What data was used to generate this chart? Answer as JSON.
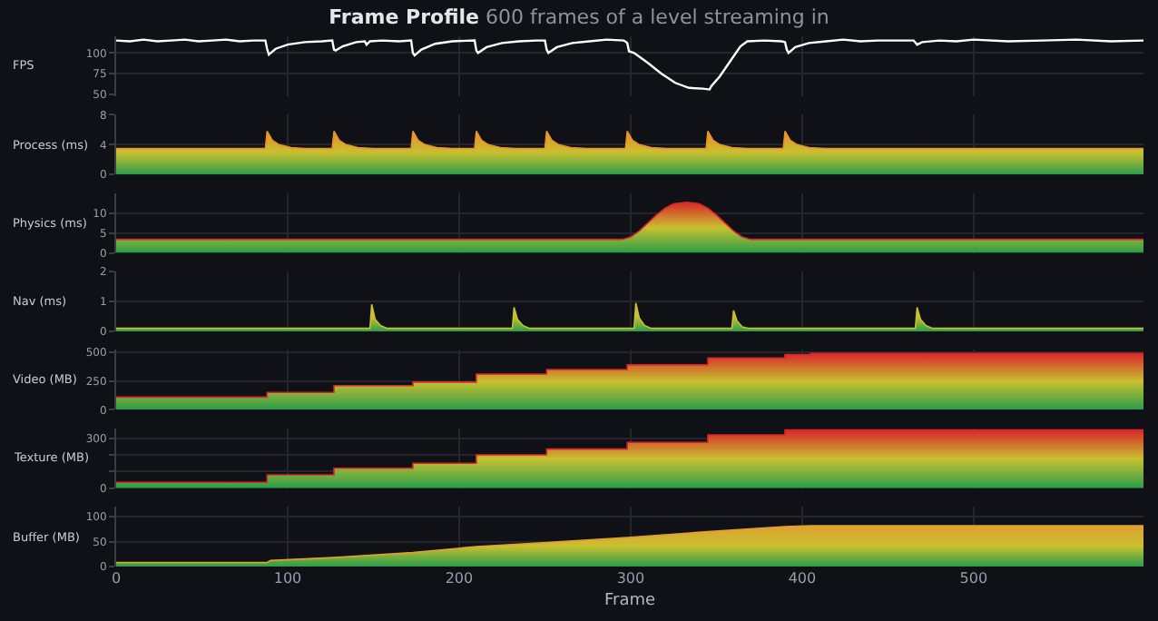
{
  "chart_data": [
    {
      "type": "line",
      "title": "Frame Profile",
      "subtitle": "600 frames of a level streaming in",
      "ylabel": "FPS",
      "color": "#ffffff",
      "xlim": [
        0,
        599
      ],
      "xticks": [
        0,
        100,
        200,
        300,
        400,
        500
      ],
      "ylim": [
        48,
        120
      ],
      "yticks": [
        50,
        75,
        100
      ],
      "tick_labels": "y",
      "grid": true,
      "marker": "none",
      "x": [
        0,
        8,
        16,
        24,
        32,
        40,
        48,
        56,
        64,
        72,
        80,
        87,
        88,
        89,
        93,
        100,
        110,
        120,
        126,
        127,
        128,
        132,
        140,
        145,
        146,
        148,
        155,
        165,
        172,
        173,
        174,
        178,
        186,
        196,
        209,
        210,
        211,
        216,
        225,
        235,
        245,
        250,
        251,
        252,
        257,
        266,
        276,
        286,
        296,
        298,
        299,
        302,
        310,
        318,
        326,
        334,
        342,
        346,
        347,
        352,
        358,
        364,
        368,
        378,
        388,
        390,
        391,
        392,
        396,
        404,
        414,
        424,
        434,
        444,
        465,
        467,
        470,
        480,
        490,
        500,
        520,
        540,
        560,
        580,
        599
      ],
      "values": [
        115,
        114,
        116,
        114,
        115,
        116,
        114,
        115,
        116,
        114,
        115,
        115,
        105,
        98,
        105,
        110,
        113,
        114,
        115,
        104,
        103,
        108,
        113,
        114,
        110,
        114,
        115,
        114,
        115,
        100,
        97,
        104,
        111,
        114,
        115,
        103,
        100,
        107,
        112,
        114,
        115,
        115,
        104,
        100,
        107,
        112,
        114,
        116,
        115,
        112,
        102,
        100,
        88,
        75,
        64,
        58,
        57,
        56,
        60,
        72,
        90,
        108,
        114,
        115,
        114,
        113,
        104,
        100,
        107,
        112,
        114,
        116,
        114,
        115,
        115,
        110,
        113,
        115,
        114,
        116,
        114,
        115,
        116,
        114,
        115
      ]
    },
    {
      "type": "area",
      "ylabel": "Process (ms)",
      "color": "#e8902c",
      "xlim": [
        0,
        599
      ],
      "xticks": [
        0,
        100,
        200,
        300,
        400,
        500
      ],
      "ylim": [
        0,
        8
      ],
      "yticks": [
        0,
        4,
        8
      ],
      "tick_labels": "y",
      "grid": true,
      "x": [
        0,
        87,
        88,
        91,
        95,
        102,
        110,
        126,
        127,
        130,
        134,
        141,
        150,
        172,
        173,
        176,
        180,
        187,
        196,
        209,
        210,
        213,
        217,
        224,
        233,
        250,
        251,
        254,
        258,
        265,
        274,
        297,
        298,
        301,
        305,
        312,
        321,
        344,
        345,
        348,
        352,
        359,
        368,
        389,
        390,
        393,
        397,
        404,
        413,
        599
      ],
      "values": [
        3.5,
        3.5,
        5.8,
        4.6,
        4.0,
        3.6,
        3.5,
        3.5,
        5.8,
        4.6,
        4.0,
        3.6,
        3.5,
        3.5,
        5.8,
        4.6,
        4.0,
        3.6,
        3.5,
        3.5,
        5.8,
        4.6,
        4.0,
        3.6,
        3.5,
        3.5,
        5.8,
        4.6,
        4.0,
        3.6,
        3.5,
        3.5,
        5.8,
        4.6,
        4.0,
        3.6,
        3.5,
        3.5,
        5.8,
        4.6,
        4.0,
        3.6,
        3.5,
        3.5,
        5.8,
        4.6,
        4.0,
        3.6,
        3.5,
        3.5
      ]
    },
    {
      "type": "area",
      "ylabel": "Physics (ms)",
      "color": "#d9262a",
      "xlim": [
        0,
        599
      ],
      "xticks": [
        0,
        100,
        200,
        300,
        400,
        500
      ],
      "ylim": [
        0,
        15
      ],
      "yticks": [
        0,
        5,
        10
      ],
      "tick_labels": "y",
      "grid": true,
      "x": [
        0,
        295,
        300,
        305,
        310,
        315,
        320,
        325,
        333,
        340,
        345,
        350,
        355,
        360,
        365,
        370,
        599
      ],
      "values": [
        3.4,
        3.4,
        4,
        5.5,
        7.5,
        9.5,
        11.2,
        12.3,
        12.7,
        12.3,
        11.2,
        9.5,
        7.5,
        5.5,
        4,
        3.4,
        3.4
      ]
    },
    {
      "type": "area",
      "ylabel": "Nav (ms)",
      "color": "#c8c030",
      "xlim": [
        0,
        599
      ],
      "xticks": [
        0,
        100,
        200,
        300,
        400,
        500
      ],
      "ylim": [
        0,
        2
      ],
      "yticks": [
        0,
        1,
        2
      ],
      "tick_labels": "y",
      "grid": true,
      "x": [
        0,
        148,
        149,
        151,
        154,
        158,
        231,
        232,
        234,
        237,
        241,
        302,
        303,
        305,
        308,
        312,
        359,
        360,
        362,
        365,
        369,
        466,
        467,
        469,
        472,
        476,
        599
      ],
      "values": [
        0.1,
        0.1,
        0.9,
        0.4,
        0.2,
        0.1,
        0.1,
        0.8,
        0.4,
        0.2,
        0.1,
        0.1,
        0.95,
        0.45,
        0.2,
        0.1,
        0.1,
        0.7,
        0.35,
        0.15,
        0.1,
        0.1,
        0.8,
        0.4,
        0.2,
        0.1,
        0.1
      ]
    },
    {
      "type": "area",
      "ylabel": "Video (MB)",
      "color": "#d9262a",
      "xlim": [
        0,
        599
      ],
      "xticks": [
        0,
        100,
        200,
        300,
        400,
        500
      ],
      "ylim": [
        0,
        520
      ],
      "yticks": [
        0,
        250,
        500
      ],
      "tick_labels": "y",
      "grid": true,
      "x": [
        0,
        88,
        88,
        127,
        127,
        173,
        173,
        210,
        210,
        251,
        251,
        298,
        298,
        345,
        345,
        390,
        390,
        405,
        405,
        599
      ],
      "values": [
        110,
        110,
        150,
        150,
        210,
        210,
        240,
        240,
        310,
        310,
        350,
        350,
        390,
        390,
        450,
        450,
        480,
        480,
        490,
        490
      ]
    },
    {
      "type": "area",
      "ylabel": "Texture (MB)",
      "color": "#d9262a",
      "xlim": [
        0,
        599
      ],
      "xticks": [
        0,
        100,
        200,
        300,
        400,
        500
      ],
      "ylim": [
        0,
        360
      ],
      "yticks": [
        0,
        {
          "value": 100,
          "label": null
        },
        {
          "value": 200,
          "label": null
        },
        300
      ],
      "tick_labels": "y",
      "grid": true,
      "x": [
        0,
        88,
        88,
        127,
        127,
        173,
        173,
        210,
        210,
        251,
        251,
        298,
        298,
        345,
        345,
        390,
        390,
        599
      ],
      "values": [
        35,
        35,
        80,
        80,
        120,
        120,
        150,
        150,
        200,
        200,
        235,
        235,
        275,
        275,
        320,
        320,
        350,
        350
      ]
    },
    {
      "type": "area",
      "xlabel": "Frame",
      "ylabel": "Buffer (MB)",
      "color": "#e0a030",
      "xlim": [
        0,
        599
      ],
      "xticks": [
        0,
        100,
        200,
        300,
        400,
        500
      ],
      "ylim": [
        0,
        120
      ],
      "yticks": [
        0,
        50,
        100
      ],
      "grid": true,
      "x": [
        0,
        88,
        90,
        127,
        173,
        210,
        251,
        298,
        345,
        390,
        405,
        599
      ],
      "values": [
        8,
        8,
        12,
        18,
        28,
        40,
        48,
        58,
        70,
        80,
        82,
        82
      ]
    }
  ]
}
